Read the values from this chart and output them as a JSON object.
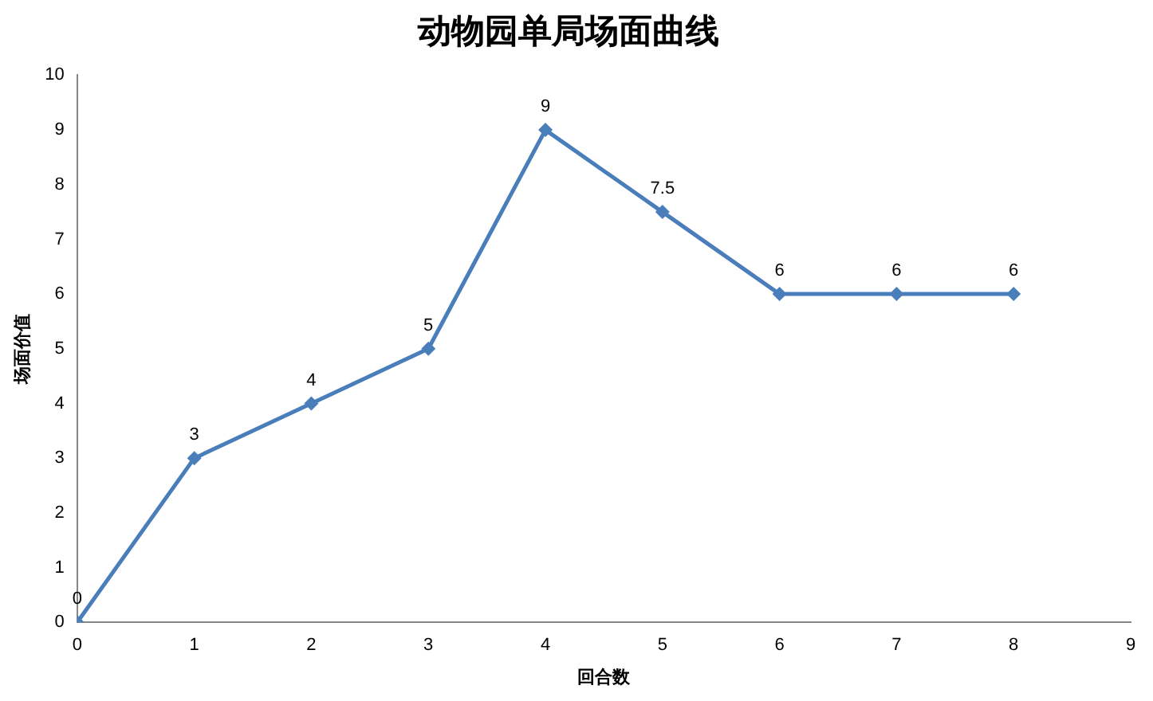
{
  "chart_data": {
    "type": "line",
    "title": "动物园单局场面曲线",
    "xlabel": "回合数",
    "ylabel": "场面价值",
    "x": [
      0,
      1,
      2,
      3,
      4,
      5,
      6,
      7,
      8
    ],
    "series": [
      {
        "color": "#4a7ebb",
        "values": [
          0,
          3,
          4,
          5,
          9,
          7.5,
          6,
          6,
          6
        ]
      }
    ],
    "xlim": [
      0,
      9
    ],
    "xticks": [
      0,
      1,
      2,
      3,
      4,
      5,
      6,
      7,
      8,
      9
    ],
    "ylim": [
      0,
      10
    ],
    "yticks": [
      0,
      1,
      2,
      3,
      4,
      5,
      6,
      7,
      8,
      9,
      10
    ],
    "grid": false,
    "legend": false,
    "marker": "diamond",
    "line_style": "solid",
    "data_labels": true
  }
}
